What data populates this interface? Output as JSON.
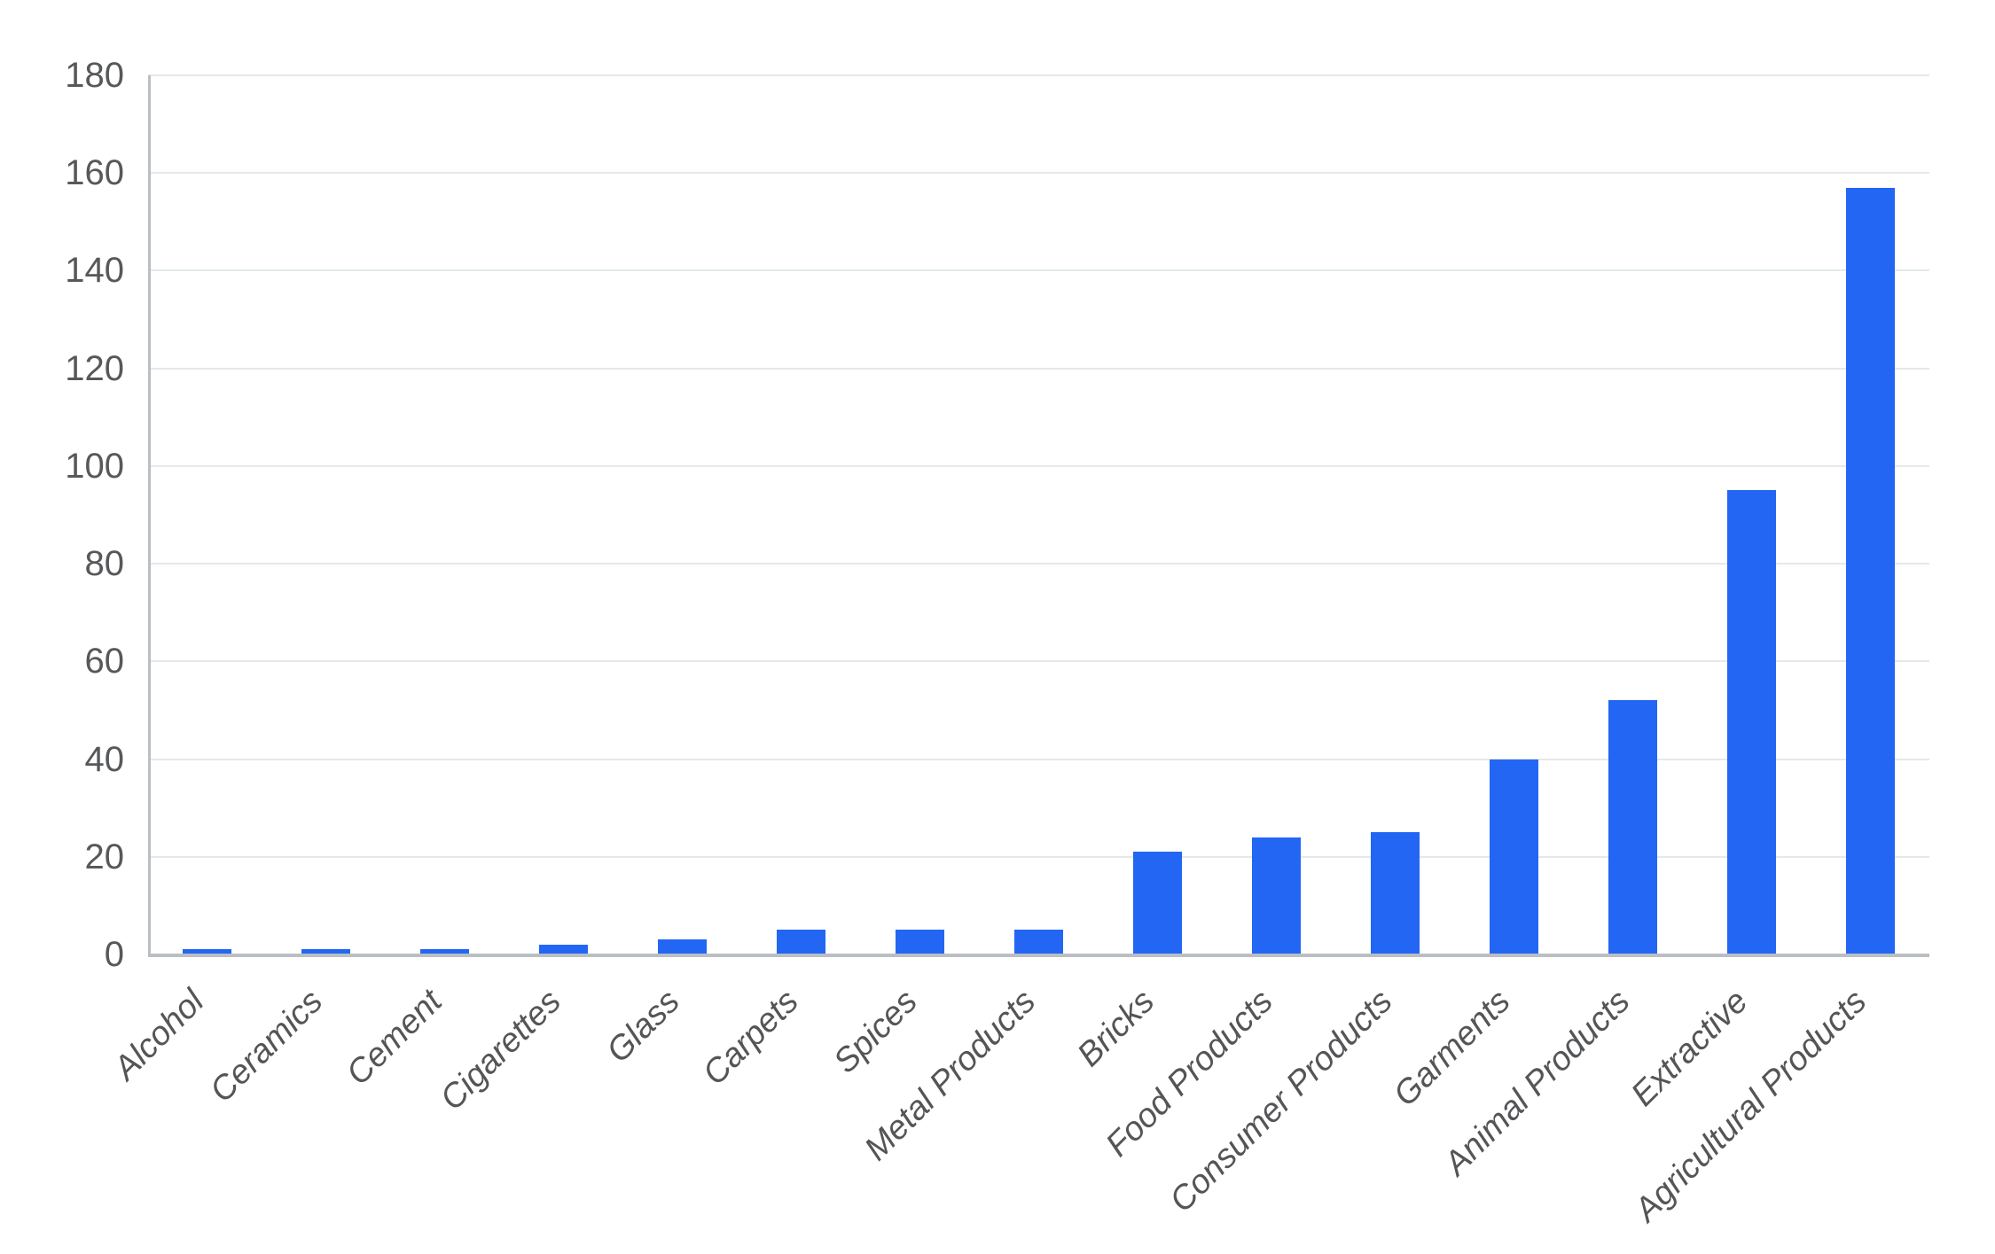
{
  "chart_data": {
    "type": "bar",
    "title": "",
    "xlabel": "",
    "ylabel": "",
    "categories": [
      "Alcohol",
      "Ceramics",
      "Cement",
      "Cigarettes",
      "Glass",
      "Carpets",
      "Spices",
      "Metal Products",
      "Bricks",
      "Food Products",
      "Consumer Products",
      "Garments",
      "Animal Products",
      "Extractive",
      "Agricultural Products"
    ],
    "values": [
      1,
      1,
      1,
      2,
      3,
      5,
      5,
      5,
      21,
      24,
      25,
      40,
      52,
      95,
      157
    ],
    "ylim": [
      0,
      180
    ],
    "yticks": [
      0,
      20,
      40,
      60,
      80,
      100,
      120,
      140,
      160,
      180
    ],
    "grid": true,
    "legend_position": "none",
    "x_label_rotation_deg": -45,
    "colors": {
      "bar": "#2366f3",
      "gridline": "#e4e9ea",
      "axis_line": "#b9bfc2",
      "tick_label": "#57585a",
      "x_tick_label": "#545557",
      "background": "#ffffff"
    }
  }
}
